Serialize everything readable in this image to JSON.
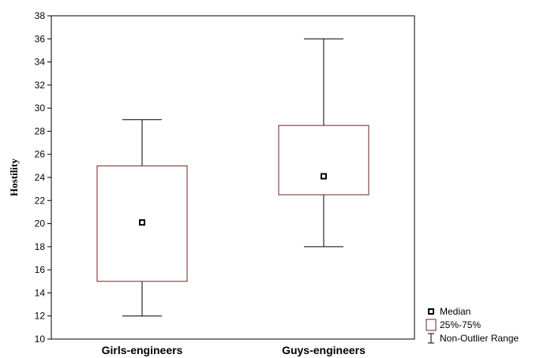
{
  "chart_data": {
    "type": "boxplot",
    "ylabel": "Hostility",
    "xlabel": "",
    "ylim": [
      10,
      38
    ],
    "yticks": [
      10,
      12,
      14,
      16,
      18,
      20,
      22,
      24,
      26,
      28,
      30,
      32,
      34,
      36,
      38
    ],
    "categories": [
      "Girls-engineers",
      "Guys-engineers"
    ],
    "boxes": [
      {
        "category": "Girls-engineers",
        "min": 12,
        "q1": 15,
        "median": 20.1,
        "q3": 25,
        "max": 29
      },
      {
        "category": "Guys-engineers",
        "min": 18,
        "q1": 22.5,
        "median": 24.1,
        "q3": 28.5,
        "max": 36
      }
    ],
    "legend": {
      "position": "bottom-right",
      "items": [
        {
          "label": "Median",
          "symbol": "square-point"
        },
        {
          "label": "25%-75%",
          "symbol": "box"
        },
        {
          "label": "Non-Outlier Range",
          "symbol": "whisker"
        }
      ]
    },
    "colors": {
      "box_stroke": "#7a1f1f",
      "line": "#000000",
      "background": "#ffffff"
    },
    "grid": false
  }
}
